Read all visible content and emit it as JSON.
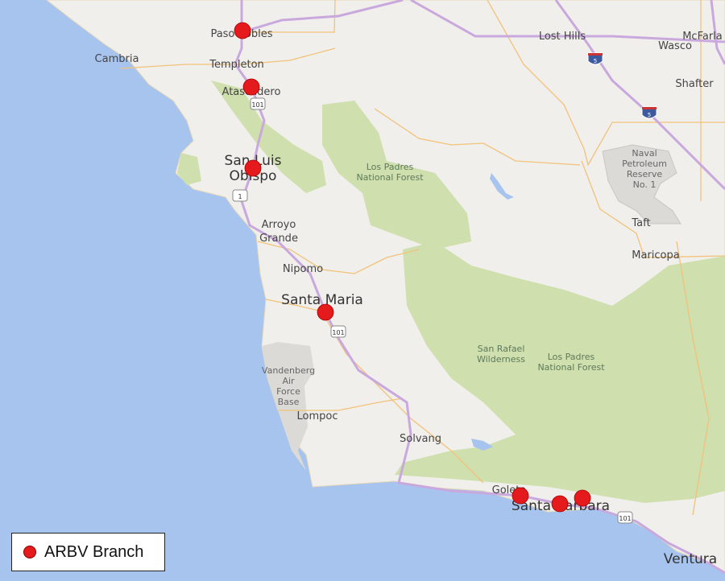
{
  "colors": {
    "ocean": "#a6c4ee",
    "land": "#f0efeb",
    "forest": "#cfdfae",
    "military": "#dcdad6",
    "highway": "#c9a9dd",
    "road": "#f2c27a",
    "marker": "#e41a1c"
  },
  "places": [
    {
      "name": "Paso Robles",
      "size": "normal"
    },
    {
      "name": "Cambria",
      "size": "normal"
    },
    {
      "name": "Templeton",
      "size": "normal"
    },
    {
      "name": "Atascadero",
      "size": "normal"
    },
    {
      "name": "San Luis",
      "size": "big"
    },
    {
      "name": "Obispo",
      "size": "big"
    },
    {
      "name": "Arroyo",
      "size": "normal"
    },
    {
      "name": "Grande",
      "size": "normal"
    },
    {
      "name": "Nipomo",
      "size": "normal"
    },
    {
      "name": "Santa Maria",
      "size": "big"
    },
    {
      "name": "Lompoc",
      "size": "normal"
    },
    {
      "name": "Solvang",
      "size": "normal"
    },
    {
      "name": "Goleta",
      "size": "normal"
    },
    {
      "name": "Santa Barbara",
      "size": "big"
    },
    {
      "name": "Ventura",
      "size": "big"
    },
    {
      "name": "Lost Hills",
      "size": "normal"
    },
    {
      "name": "Wasco",
      "size": "normal"
    },
    {
      "name": "McFarla",
      "size": "normal"
    },
    {
      "name": "Shafter",
      "size": "normal"
    },
    {
      "name": "Taft",
      "size": "normal"
    },
    {
      "name": "Maricopa",
      "size": "normal"
    }
  ],
  "areas": {
    "lp_north_1": "Los Padres",
    "lp_north_2": "National Forest",
    "srw_1": "San Rafael",
    "srw_2": "Wilderness",
    "lp_south_1": "Los Padres",
    "lp_south_2": "National Forest",
    "vafb_1": "Vandenberg",
    "vafb_2": "Air",
    "vafb_3": "Force",
    "vafb_4": "Base",
    "npr_1": "Naval",
    "npr_2": "Petroleum",
    "npr_3": "Reserve",
    "npr_4": "No. 1"
  },
  "shields": {
    "us101": "101",
    "ca1": "1",
    "i5": "5"
  },
  "markers": [
    {
      "near": "Paso Robles"
    },
    {
      "near": "Atascadero"
    },
    {
      "near": "San Luis Obispo"
    },
    {
      "near": "Santa Maria"
    },
    {
      "near": "Goleta"
    },
    {
      "near": "Santa Barbara"
    },
    {
      "near": "Santa Barbara (east)"
    }
  ],
  "legend": {
    "label": "ARBV Branch"
  }
}
